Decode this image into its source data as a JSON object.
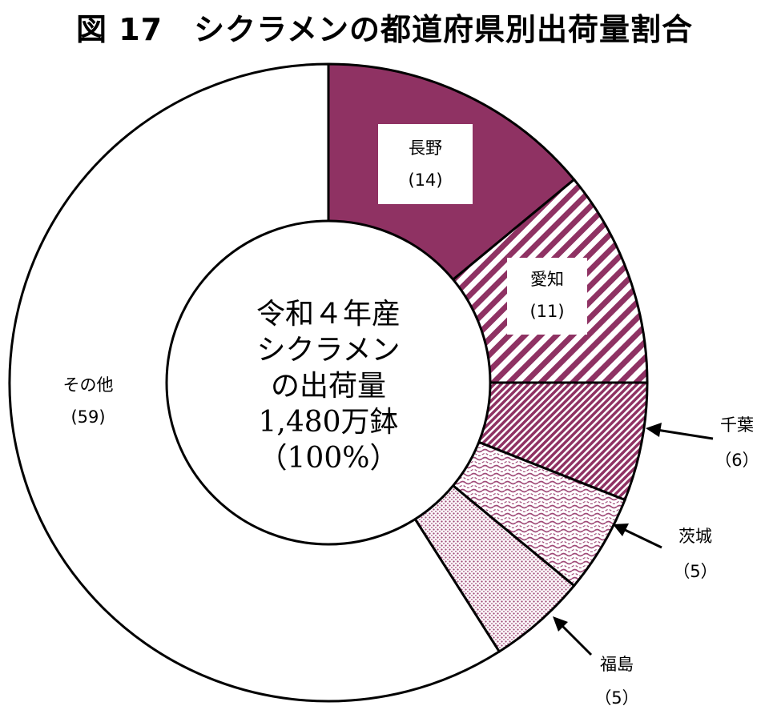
{
  "chart_data": {
    "type": "pie",
    "title": "図 17　シクラメンの都道府県別出荷量割合",
    "center_label": [
      "令和４年産",
      "シクラメン",
      "の出荷量",
      "1,480万鉢",
      "（100%）"
    ],
    "unit": "%",
    "slices": [
      {
        "name": "長野",
        "value": 14,
        "value_text": "(14)",
        "color": "#8f3263",
        "pattern": "solid"
      },
      {
        "name": "愛知",
        "value": 11,
        "value_text": "(11)",
        "color": "#8f3263",
        "pattern": "diagonal-stripes"
      },
      {
        "name": "千葉",
        "value": 6,
        "value_text": "（6）",
        "color": "#8f3263",
        "pattern": "fine-diagonal"
      },
      {
        "name": "茨城",
        "value": 5,
        "value_text": "（5）",
        "color": "#8f3263",
        "pattern": "dashed-waves"
      },
      {
        "name": "福島",
        "value": 5,
        "value_text": "（5）",
        "color": "#8f3263",
        "pattern": "dots"
      },
      {
        "name": "その他",
        "value": 59,
        "value_text": "(59)",
        "color": "#ffffff",
        "pattern": "none"
      }
    ]
  }
}
